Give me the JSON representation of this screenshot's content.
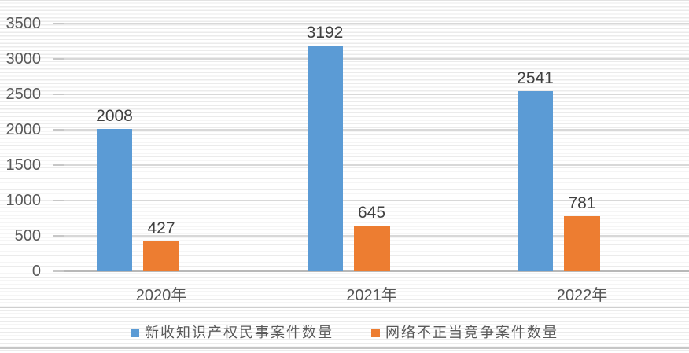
{
  "chart_data": {
    "type": "bar",
    "categories": [
      "2020年",
      "2021年",
      "2022年"
    ],
    "series": [
      {
        "name": "新收知识产权民事案件数量",
        "color": "#5b9bd5",
        "values": [
          2008,
          3192,
          2541
        ]
      },
      {
        "name": "网络不正当竞争案件数量",
        "color": "#ed7d31",
        "values": [
          427,
          645,
          781
        ]
      }
    ],
    "yticks": [
      0,
      500,
      1000,
      1500,
      2000,
      2500,
      3000,
      3500
    ],
    "ylim": [
      0,
      3500
    ],
    "grid": true,
    "value_labels": true,
    "legend_position": "bottom",
    "title": "",
    "xlabel": "",
    "ylabel": ""
  },
  "style": {
    "series_blue": "#5b9bd5",
    "series_orange": "#ed7d31",
    "gridline_color": "#d8d8d8",
    "axis_line_color": "#b8b8b8",
    "axis_text_color": "#595959",
    "value_label_color": "#404040",
    "stripe_color": "#ebebeb",
    "background": "#ffffff"
  }
}
